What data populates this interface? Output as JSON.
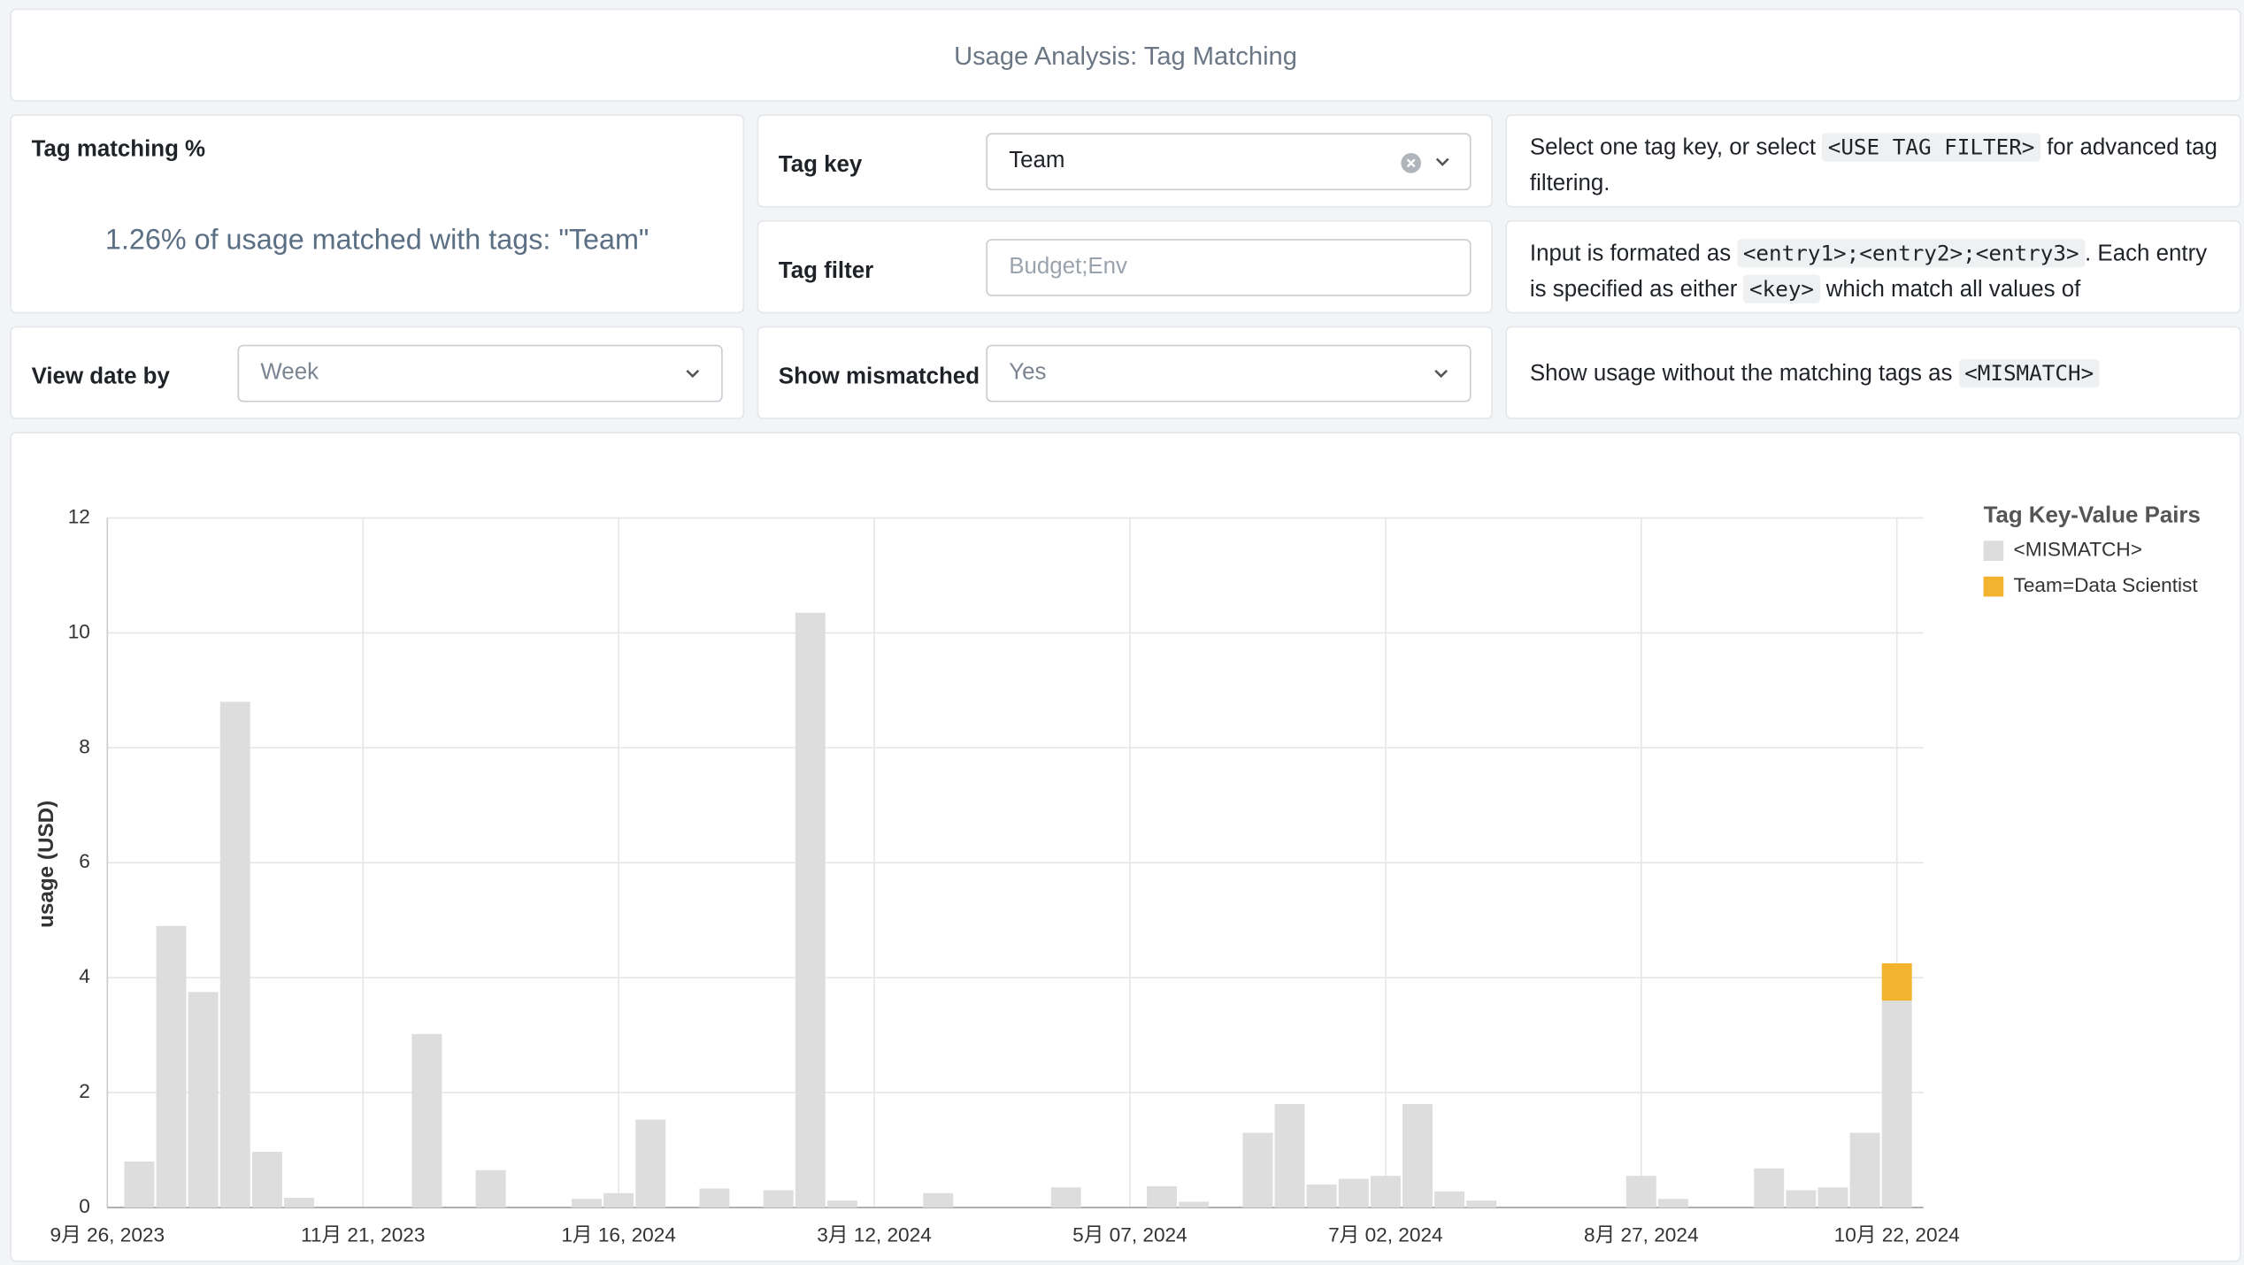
{
  "header": {
    "title": "Usage Analysis: Tag Matching"
  },
  "summary": {
    "title": "Tag matching %",
    "text": "1.26% of usage matched with tags: \"Team\""
  },
  "controls": {
    "tag_key": {
      "label": "Tag key",
      "value": "Team"
    },
    "tag_filter": {
      "label": "Tag filter",
      "placeholder": "Budget;Env"
    },
    "view_date": {
      "label": "View date by",
      "value": "Week"
    },
    "show_mismatched": {
      "label": "Show mismatched",
      "value": "Yes"
    }
  },
  "info": {
    "tag_key": [
      "Select one tag key, or select ",
      "<USE TAG FILTER>",
      " for advanced tag filtering."
    ],
    "tag_filter": [
      "Input is formated as ",
      "<entry1>;<entry2>;<entry3>",
      ". Each entry is specified as either ",
      "<key>",
      " which match all values of"
    ],
    "mismatch": [
      "Show usage without the matching tags as ",
      "<MISMATCH>"
    ]
  },
  "chart_data": {
    "type": "stacked-bar",
    "y_label": "usage (USD)",
    "legend_title": "Tag Key-Value Pairs",
    "legend": "right",
    "categories": [
      "9月 26, 2023",
      null,
      null,
      null,
      null,
      null,
      null,
      null,
      "11月 21, 2023",
      null,
      null,
      null,
      null,
      null,
      null,
      null,
      "1月 16, 2024",
      null,
      null,
      null,
      null,
      null,
      null,
      null,
      "3月 12, 2024",
      null,
      null,
      null,
      null,
      null,
      null,
      null,
      "5月 07, 2024",
      null,
      null,
      null,
      null,
      null,
      null,
      null,
      "7月 02, 2024",
      null,
      null,
      null,
      null,
      null,
      null,
      null,
      "8月 27, 2024",
      null,
      null,
      null,
      null,
      null,
      null,
      null,
      "10月 22, 2024"
    ],
    "series": [
      {
        "name": "<MISMATCH>",
        "color": "#dddddd",
        "values": [
          0,
          0.8,
          4.9,
          3.75,
          8.8,
          0.97,
          0.17,
          0,
          0,
          0,
          3.02,
          0,
          0.65,
          0,
          0,
          0.15,
          0.25,
          1.53,
          0,
          0.33,
          0,
          0.3,
          10.35,
          0.12,
          0,
          0,
          0.25,
          0,
          0,
          0,
          0.35,
          0,
          0,
          0.37,
          0.1,
          0,
          1.3,
          1.8,
          0.4,
          0.5,
          0.55,
          1.8,
          0.28,
          0.12,
          0,
          0,
          0,
          0,
          0.55,
          0.15,
          0,
          0,
          0.68,
          0.3,
          0.35,
          1.3,
          3.6
        ]
      },
      {
        "name": "Team=Data Scientist",
        "color": "#f4b32f",
        "values": [
          0,
          0,
          0,
          0,
          0,
          0,
          0,
          0,
          0,
          0,
          0,
          0,
          0,
          0,
          0,
          0,
          0,
          0,
          0,
          0,
          0,
          0,
          0,
          0,
          0,
          0,
          0,
          0,
          0,
          0,
          0,
          0,
          0,
          0,
          0,
          0,
          0,
          0,
          0,
          0,
          0,
          0,
          0,
          0,
          0,
          0,
          0,
          0,
          0,
          0,
          0,
          0,
          0,
          0,
          0,
          0,
          0.65
        ]
      }
    ],
    "ylim": [
      0,
      12
    ],
    "yticks": [
      0,
      2,
      4,
      6,
      8,
      10,
      12
    ],
    "grid": true
  }
}
